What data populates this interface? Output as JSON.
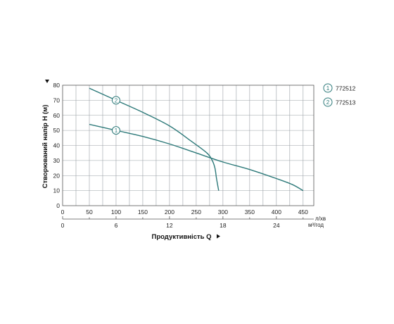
{
  "chart_data": {
    "type": "line",
    "ylabel": "Створюваний напір H (м)",
    "xlabel": "Продуктивність  Q",
    "x_unit_primary": "л/хв",
    "x_unit_secondary": "м³/год",
    "xlim": [
      0,
      470
    ],
    "ylim": [
      0,
      80
    ],
    "x_ticks": [
      "0",
      "50",
      "100",
      "150",
      "200",
      "250",
      "300",
      "350",
      "400",
      "450"
    ],
    "x_ticks_values": [
      0,
      50,
      100,
      150,
      200,
      250,
      300,
      350,
      400,
      450
    ],
    "x2_ticks": [
      "0",
      "6",
      "12",
      "18",
      "24"
    ],
    "x2_ticks_values": [
      0,
      6,
      12,
      18,
      24
    ],
    "y_ticks": [
      "0",
      "10",
      "20",
      "30",
      "40",
      "50",
      "60",
      "70",
      "80"
    ],
    "y_ticks_values": [
      0,
      10,
      20,
      30,
      40,
      50,
      60,
      70,
      80
    ],
    "grid": true,
    "legend_position": "right",
    "series": [
      {
        "name": "772512",
        "marker": "1",
        "marker_at": [
          100,
          50
        ],
        "color": "#2e7a7a",
        "x": [
          50,
          100,
          150,
          200,
          250,
          300,
          350,
          400,
          430,
          450
        ],
        "y": [
          54,
          50,
          46,
          41,
          35,
          29,
          24,
          18,
          14,
          10
        ]
      },
      {
        "name": "772513",
        "marker": "2",
        "marker_at": [
          100,
          70
        ],
        "color": "#2e7a7a",
        "x": [
          50,
          100,
          150,
          200,
          240,
          270,
          280,
          285,
          288,
          292
        ],
        "y": [
          78,
          70,
          62,
          53,
          43,
          35,
          30,
          25,
          18,
          10
        ]
      }
    ],
    "axis_arrow_color": "#111111"
  }
}
